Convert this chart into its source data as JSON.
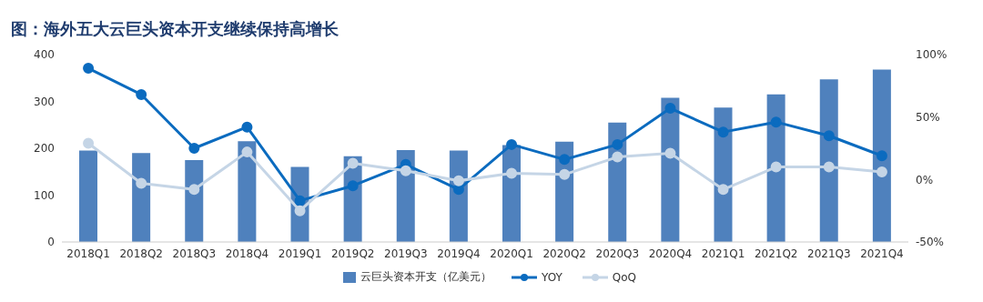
{
  "chart_data": {
    "type": "bar",
    "title": "图：海外五大云巨头资本开支继续保持高增长",
    "categories": [
      "2018Q1",
      "2018Q2",
      "2018Q3",
      "2018Q4",
      "2019Q1",
      "2019Q2",
      "2019Q3",
      "2019Q4",
      "2020Q1",
      "2020Q2",
      "2020Q3",
      "2020Q4",
      "2021Q1",
      "2021Q2",
      "2021Q3",
      "2021Q4"
    ],
    "series": [
      {
        "name": "云巨头资本开支（亿美元）",
        "color": "#4f81bd",
        "values": [
          195,
          190,
          175,
          215,
          160,
          183,
          196,
          195,
          207,
          214,
          255,
          308,
          287,
          315,
          347,
          368
        ]
      },
      {
        "name": "YOY",
        "type": "line",
        "axis": "y2",
        "color": "#0b6bbf",
        "values": [
          89,
          68,
          25,
          42,
          -17,
          -5,
          12,
          -8,
          28,
          16,
          28,
          57,
          38,
          46,
          35,
          19
        ]
      },
      {
        "name": "QoQ",
        "type": "line",
        "axis": "y2",
        "color": "#c5d5e6",
        "values": [
          29,
          -3,
          -8,
          22,
          -25,
          13,
          7,
          -1,
          5,
          4,
          18,
          21,
          -8,
          10,
          10,
          6
        ]
      }
    ],
    "ylim": [
      0,
      400
    ],
    "yticks": [
      0,
      100,
      200,
      300,
      400
    ],
    "y2lim": [
      -50,
      100
    ],
    "y2ticks": [
      {
        "value": -50,
        "label": "-50%"
      },
      {
        "value": 0,
        "label": "0%"
      },
      {
        "value": 50,
        "label": "50%"
      },
      {
        "value": 100,
        "label": "100%"
      }
    ],
    "grid": false,
    "legend": "bottom",
    "marker": "circle",
    "line_style": "solid"
  }
}
